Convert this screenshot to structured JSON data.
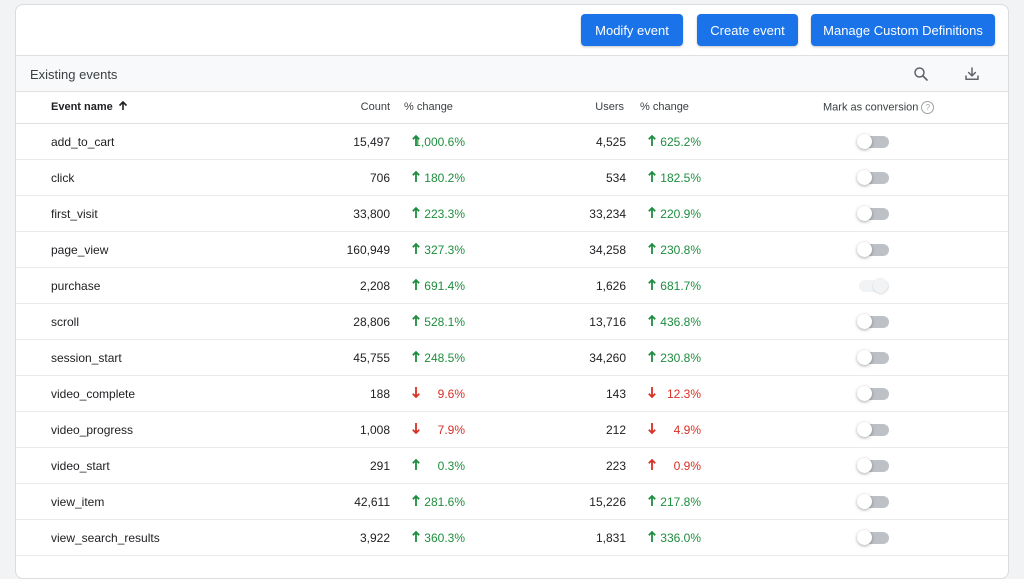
{
  "toolbar": {
    "modify_label": "Modify event",
    "create_label": "Create event",
    "manage_label": "Manage Custom Definitions"
  },
  "section": {
    "title": "Existing events",
    "search_icon": "search-icon",
    "download_icon": "download-icon"
  },
  "columns": {
    "event_name": "Event name",
    "sort_icon": "arrow-up-icon",
    "count": "Count",
    "count_change": "% change",
    "users": "Users",
    "users_change": "% change",
    "mark_as_conversion": "Mark as conversion",
    "help": "?"
  },
  "colors": {
    "accent": "#1a73e8",
    "up": "#1e8e3e",
    "down": "#d93025"
  },
  "rows": [
    {
      "name": "add_to_cart",
      "count": "15,497",
      "count_change": "1,000.6%",
      "count_dir": "up",
      "users": "4,525",
      "users_change": "625.2%",
      "users_dir": "up",
      "conversion": false,
      "disabled": false
    },
    {
      "name": "click",
      "count": "706",
      "count_change": "180.2%",
      "count_dir": "up",
      "users": "534",
      "users_change": "182.5%",
      "users_dir": "up",
      "conversion": false,
      "disabled": false
    },
    {
      "name": "first_visit",
      "count": "33,800",
      "count_change": "223.3%",
      "count_dir": "up",
      "users": "33,234",
      "users_change": "220.9%",
      "users_dir": "up",
      "conversion": false,
      "disabled": false
    },
    {
      "name": "page_view",
      "count": "160,949",
      "count_change": "327.3%",
      "count_dir": "up",
      "users": "34,258",
      "users_change": "230.8%",
      "users_dir": "up",
      "conversion": false,
      "disabled": false
    },
    {
      "name": "purchase",
      "count": "2,208",
      "count_change": "691.4%",
      "count_dir": "up",
      "users": "1,626",
      "users_change": "681.7%",
      "users_dir": "up",
      "conversion": true,
      "disabled": true
    },
    {
      "name": "scroll",
      "count": "28,806",
      "count_change": "528.1%",
      "count_dir": "up",
      "users": "13,716",
      "users_change": "436.8%",
      "users_dir": "up",
      "conversion": false,
      "disabled": false
    },
    {
      "name": "session_start",
      "count": "45,755",
      "count_change": "248.5%",
      "count_dir": "up",
      "users": "34,260",
      "users_change": "230.8%",
      "users_dir": "up",
      "conversion": false,
      "disabled": false
    },
    {
      "name": "video_complete",
      "count": "188",
      "count_change": "9.6%",
      "count_dir": "down",
      "users": "143",
      "users_change": "12.3%",
      "users_dir": "down",
      "conversion": false,
      "disabled": false
    },
    {
      "name": "video_progress",
      "count": "1,008",
      "count_change": "7.9%",
      "count_dir": "down",
      "users": "212",
      "users_change": "4.9%",
      "users_dir": "down",
      "conversion": false,
      "disabled": false
    },
    {
      "name": "video_start",
      "count": "291",
      "count_change": "0.3%",
      "count_dir": "up",
      "users": "223",
      "users_change": "0.9%",
      "users_dir": "up_red",
      "conversion": false,
      "disabled": false
    },
    {
      "name": "view_item",
      "count": "42,611",
      "count_change": "281.6%",
      "count_dir": "up",
      "users": "15,226",
      "users_change": "217.8%",
      "users_dir": "up",
      "conversion": false,
      "disabled": false
    },
    {
      "name": "view_search_results",
      "count": "3,922",
      "count_change": "360.3%",
      "count_dir": "up",
      "users": "1,831",
      "users_change": "336.0%",
      "users_dir": "up",
      "conversion": false,
      "disabled": false
    }
  ]
}
